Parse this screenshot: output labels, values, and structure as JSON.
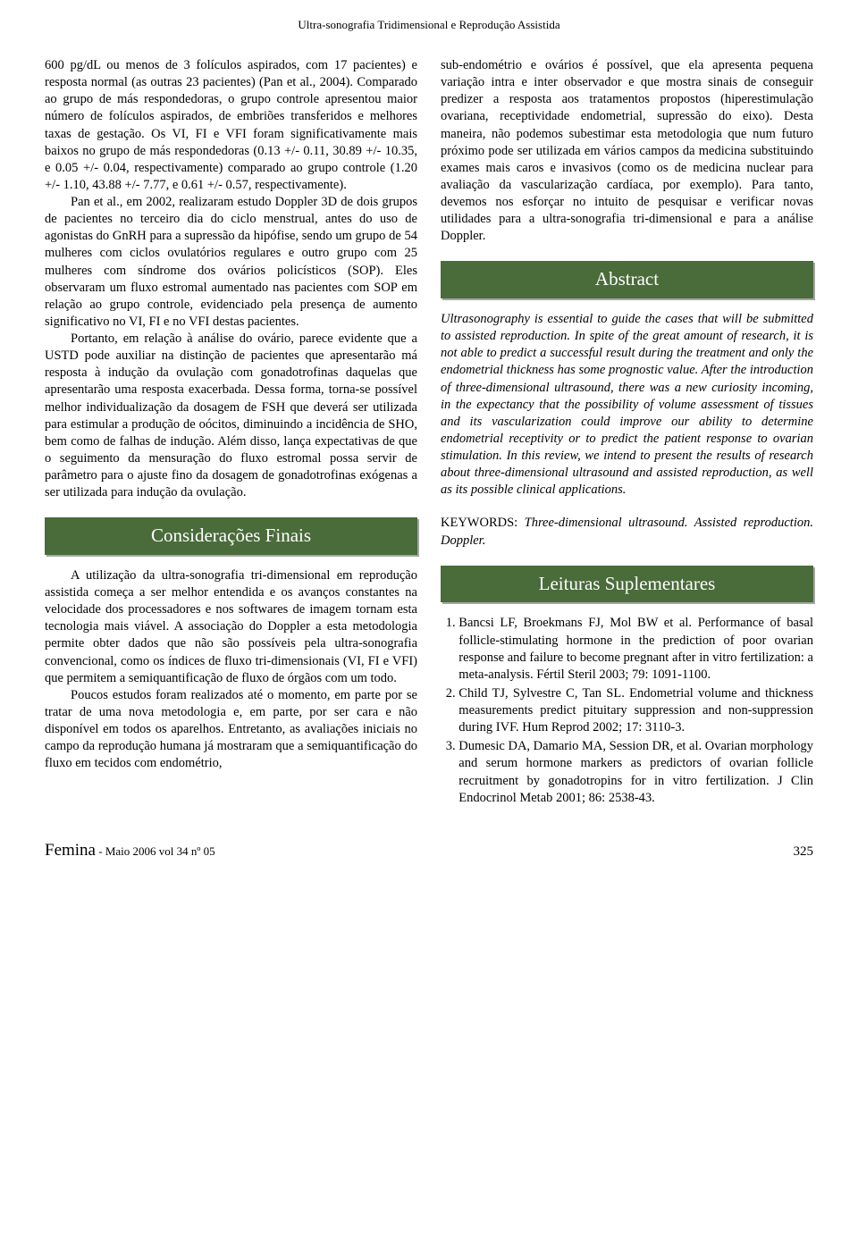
{
  "header": {
    "running_title": "Ultra-sonografia Tridimensional e Reprodução Assistida"
  },
  "left_column": {
    "p1": "600 pg/dL ou menos de 3 folículos aspirados, com 17 pacientes) e resposta normal (as outras 23 pacientes) (Pan et al., 2004). Comparado ao grupo de más respondedoras, o grupo controle apresentou maior número de folículos aspirados, de embriões transferidos e melhores taxas de gestação. Os VI, FI e VFI foram significativamente mais baixos no grupo de más respondedoras (0.13 +/- 0.11, 30.89 +/- 10.35, e 0.05 +/- 0.04, respectivamente) comparado ao grupo controle (1.20 +/- 1.10, 43.88 +/- 7.77, e 0.61 +/- 0.57, respectivamente).",
    "p2": "Pan et al., em 2002, realizaram estudo Doppler 3D de dois grupos de pacientes no terceiro dia do ciclo menstrual, antes do uso de agonistas do GnRH para a supressão da hipófise, sendo um grupo de 54 mulheres com ciclos ovulatórios regulares e outro grupo com 25 mulheres com síndrome dos ovários policísticos (SOP). Eles observaram um fluxo estromal aumentado nas pacientes com SOP em relação ao grupo controle, evidenciado pela presença de aumento significativo no VI, FI e no VFI destas pacientes.",
    "p3": "Portanto, em relação à análise do ovário, parece evidente que a USTD pode auxiliar na distinção de pacientes que apresentarão má resposta à indução da ovulação com gonadotrofinas daquelas que apresentarão uma resposta exacerbada. Dessa forma, torna-se possível melhor individualização da dosagem de FSH que deverá ser utilizada para estimular a produção de oócitos, diminuindo a incidência de SHO, bem como de falhas de indução. Além disso, lança expectativas de que o seguimento da mensuração do fluxo estromal possa servir de parâmetro para o ajuste fino da dosagem de gonadotrofinas exógenas a ser utilizada para indução da ovulação.",
    "section1_title": "Considerações Finais",
    "p4": "A utilização da ultra-sonografia tri-dimensional em reprodução assistida começa a ser melhor entendida e os avanços constantes na velocidade dos processadores e nos softwares de imagem tornam esta tecnologia mais viável. A associação do Doppler a esta metodologia permite obter dados que não são possíveis pela ultra-sonografia convencional, como os índices de fluxo tri-dimensionais (VI, FI e VFI) que permitem a semiquantificação de fluxo de órgãos com um todo.",
    "p5": "Poucos estudos foram realizados até o momento, em parte por se tratar de uma nova metodologia e, em parte, por ser cara e não disponível em todos os aparelhos. Entretanto, as avaliações iniciais no campo da reprodução humana já mostraram que a semiquantificação do fluxo em tecidos com endométrio,"
  },
  "right_column": {
    "p1": "sub-endométrio e ovários é possível, que ela apresenta pequena variação intra e inter observador e que mostra sinais de conseguir predizer a resposta aos tratamentos propostos (hiperestimulação ovariana, receptividade endometrial, supressão do eixo). Desta maneira, não podemos subestimar esta metodologia que num futuro próximo pode ser utilizada em vários campos da medicina substituindo exames mais caros e invasivos (como os de medicina nuclear para avaliação da vascularização cardíaca, por exemplo). Para tanto, devemos nos esforçar no intuito de pesquisar e verificar novas utilidades para a ultra-sonografia tri-dimensional e para a análise Doppler.",
    "abstract_title": "Abstract",
    "abstract_text": "Ultrasonography is essential to guide the cases that will be submitted to assisted reproduction. In spite of the great amount of research, it is not able to predict a successful result during the treatment and only the endometrial thickness has some prognostic value. After the introduction of three-dimensional ultrasound, there was a new curiosity incoming, in the expectancy that the possibility of volume assessment of tissues and its vascularization could improve our ability to determine endometrial receptivity or to predict the patient response to ovarian stimulation. In this review, we intend to present the results of research about three-dimensional ultrasound and assisted reproduction, as well as its possible clinical applications.",
    "keywords_label": "KEYWORDS: ",
    "keywords_text": "Three-dimensional ultrasound. Assisted reproduction. Doppler.",
    "refs_title": "Leituras Suplementares",
    "refs": [
      "Bancsi LF, Broekmans FJ, Mol BW et al. Performance of basal follicle-stimulating hormone in the prediction of poor ovarian response and failure to become pregnant after in vitro fertilization: a meta-analysis. Fértil Steril 2003; 79: 1091-1100.",
      "Child TJ, Sylvestre C, Tan SL. Endometrial volume and thickness measurements predict pituitary suppression and non-suppression during IVF. Hum Reprod 2002; 17: 3110-3.",
      "Dumesic DA, Damario MA, Session DR, et al. Ovarian morphology and serum hormone markers as predictors of ovarian follicle recruitment by gonadotropins for in vitro fertilization. J Clin Endocrinol Metab 2001; 86: 2538-43."
    ]
  },
  "footer": {
    "journal": "Femina",
    "issue": " - Maio 2006 vol 34 nº 05",
    "page": "325"
  },
  "style": {
    "banner_bg": "#4a6b3a",
    "banner_text": "#ffffff",
    "body_bg": "#ffffff",
    "text_color": "#000000",
    "body_fontsize": 14.5,
    "banner_fontsize": 21,
    "header_fontsize": 13,
    "line_height": 1.32
  }
}
